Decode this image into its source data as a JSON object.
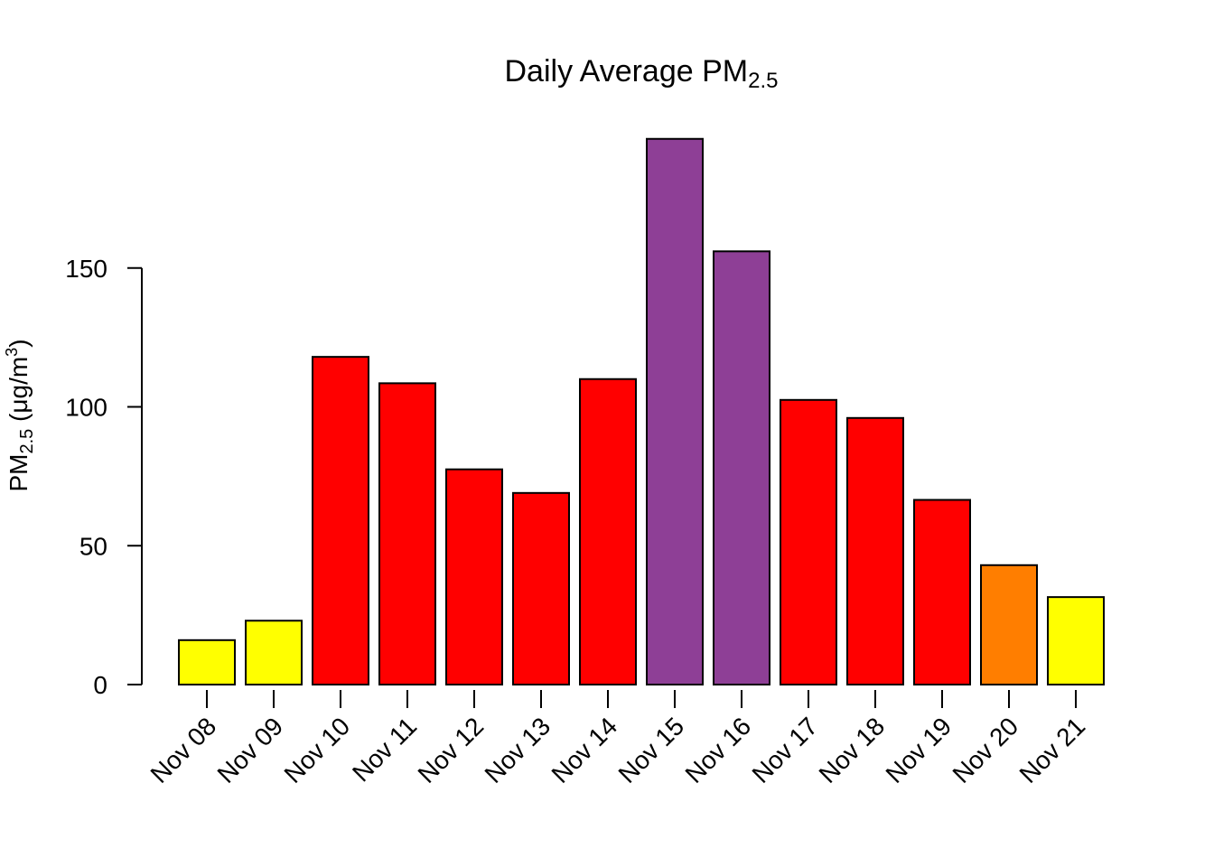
{
  "chart_data": {
    "type": "bar",
    "title": {
      "main": "Daily Average PM",
      "sub": "2.5"
    },
    "ylabel": {
      "main": "PM",
      "sub": "2.5",
      "rest": " (μg/m",
      "sup": "3",
      "end": ")"
    },
    "xlabel": "",
    "categories": [
      "Nov 08",
      "Nov 09",
      "Nov 10",
      "Nov 11",
      "Nov 12",
      "Nov 13",
      "Nov 14",
      "Nov 15",
      "Nov 16",
      "Nov 17",
      "Nov 18",
      "Nov 19",
      "Nov 20",
      "Nov 21"
    ],
    "values": [
      16,
      23,
      118,
      108.5,
      77.5,
      69,
      110,
      196.5,
      156,
      102.5,
      96,
      66.5,
      43,
      31.5
    ],
    "colors": [
      "#ffff00",
      "#ffff00",
      "#ff0000",
      "#ff0000",
      "#ff0000",
      "#ff0000",
      "#ff0000",
      "#8e3f96",
      "#8e3f96",
      "#ff0000",
      "#ff0000",
      "#ff0000",
      "#ff7e00",
      "#ffff00"
    ],
    "yticks": [
      "0",
      "50",
      "100",
      "150"
    ],
    "ylim": [
      0,
      200
    ],
    "grid": false,
    "legend": "none"
  }
}
